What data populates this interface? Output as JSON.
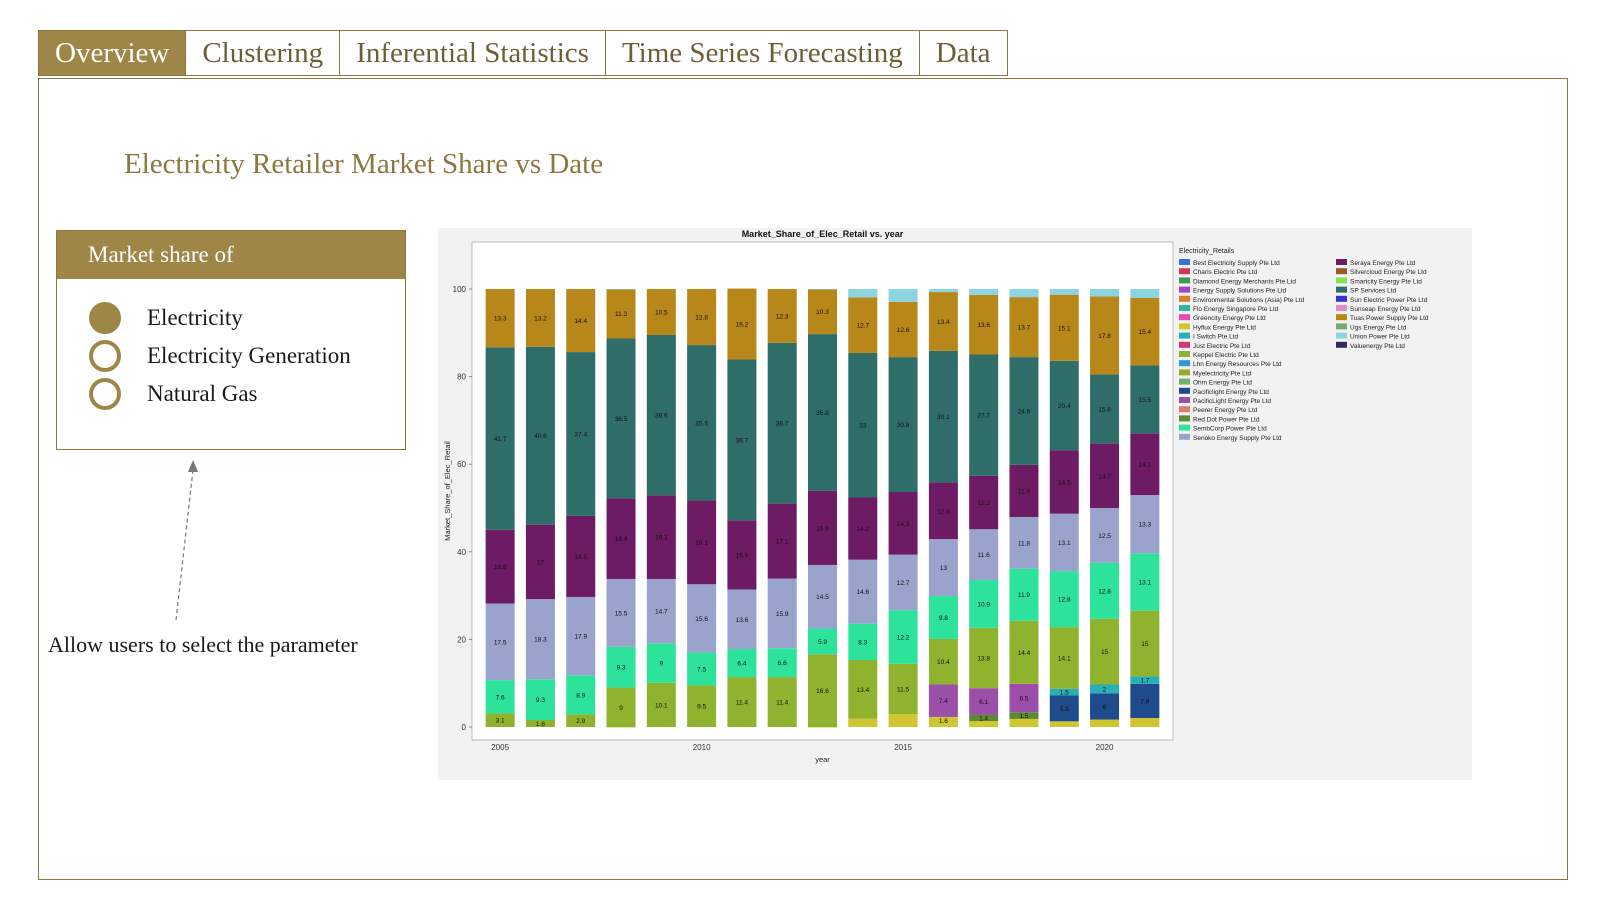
{
  "tabs": [
    {
      "label": "Overview",
      "active": true
    },
    {
      "label": "Clustering",
      "active": false
    },
    {
      "label": "Inferential Statistics",
      "active": false
    },
    {
      "label": "Time Series Forecasting",
      "active": false
    },
    {
      "label": "Data",
      "active": false
    }
  ],
  "page_title": "Electricity Retailer Market Share vs Date",
  "selector": {
    "heading": "Market share of",
    "options": [
      {
        "label": "Electricity",
        "selected": true
      },
      {
        "label": "Electricity Generation",
        "selected": false
      },
      {
        "label": "Natural Gas",
        "selected": false
      }
    ]
  },
  "annotation": "Allow users to select the parameter",
  "colors": {
    "accent": "#9e8646",
    "border": "#8c7740"
  },
  "chart_data": {
    "type": "bar",
    "stacked": true,
    "title": "Market_Share_of_Elec_Retail vs. year",
    "xlabel": "year",
    "ylabel": "Market_Share_of_Elec_Retail",
    "ylim": [
      0,
      100
    ],
    "y_ticks": [
      0,
      20,
      40,
      60,
      80,
      100
    ],
    "x_ticks": [
      2005,
      2010,
      2015,
      2020
    ],
    "legend_title": "Electricity_Retails",
    "legend_position": "right",
    "categories": [
      2005,
      2006,
      2007,
      2008,
      2009,
      2010,
      2011,
      2012,
      2013,
      2014,
      2015,
      2016,
      2017,
      2018,
      2019,
      2020,
      2021
    ],
    "legend": [
      {
        "name": "Best Electricity Supply Pte Ltd",
        "color": "#3b6fd8"
      },
      {
        "name": "Charis Electric Pte Ltd",
        "color": "#d8345a"
      },
      {
        "name": "Diamond Energy Merchants Pte Ltd",
        "color": "#3a9e4e"
      },
      {
        "name": "Energy Supply Solutions Pte Ltd",
        "color": "#a742c8"
      },
      {
        "name": "Environmental Solutions (Asia) Pte Ltd",
        "color": "#e07d2a"
      },
      {
        "name": "Flo Energy Singapore Pte Ltd",
        "color": "#2ab8a2"
      },
      {
        "name": "Greencity Energy Pte Ltd",
        "color": "#e84bb6"
      },
      {
        "name": "Hyflux Energy Pte Ltd",
        "color": "#cfc632"
      },
      {
        "name": "I Switch Pte Ltd",
        "color": "#27b0b8"
      },
      {
        "name": "Just Electric Pte Ltd",
        "color": "#d6367a"
      },
      {
        "name": "Keppel Electric Pte Ltd",
        "color": "#8fb32e"
      },
      {
        "name": "Lhn Energy Resources Pte Ltd",
        "color": "#2b9bd0"
      },
      {
        "name": "Myelectricity Pte Ltd",
        "color": "#97a832"
      },
      {
        "name": "Ohm Energy Pte Ltd",
        "color": "#6fb26b"
      },
      {
        "name": "Pacificlight Energy Pte Ltd",
        "color": "#1f4a8c"
      },
      {
        "name": "PacificLight Energy Pte Ltd",
        "color": "#9b4fa8"
      },
      {
        "name": "Peerer Energy Pte Ltd",
        "color": "#e07a6a"
      },
      {
        "name": "Red Dot Power Pte Ltd",
        "color": "#5d8a30"
      },
      {
        "name": "SembCorp Power Pte Ltd",
        "color": "#2de39c"
      },
      {
        "name": "Senoko Energy Supply Pte Ltd",
        "color": "#9aa3cc"
      },
      {
        "name": "Seraya Energy Pte Ltd",
        "color": "#6d1b64"
      },
      {
        "name": "Silvercloud Energy Pte Ltd",
        "color": "#9a5a2a"
      },
      {
        "name": "Smartcity Energy Pte Ltd",
        "color": "#86e05a"
      },
      {
        "name": "SP Services Ltd",
        "color": "#2f6e68"
      },
      {
        "name": "Sun Electric Power Pte Ltd",
        "color": "#3434d2"
      },
      {
        "name": "Sunseap Energy Pte Ltd",
        "color": "#e48ac8"
      },
      {
        "name": "Tuas Power Supply Pte Ltd",
        "color": "#b8871a"
      },
      {
        "name": "Ugs Energy Pte Ltd",
        "color": "#77a870"
      },
      {
        "name": "Union Power Pte Ltd",
        "color": "#8cd5e0"
      },
      {
        "name": "Valuenergy Pte Ltd",
        "color": "#352a60"
      }
    ],
    "series": [
      {
        "name": "Keppel Electric Pte Ltd",
        "color": "#8fb32e",
        "values": [
          3.1,
          1.6,
          2.9,
          9,
          10.1,
          9.5,
          11.4,
          11.4,
          16.6,
          13.4,
          11.5,
          10.4,
          13.8,
          14.4,
          14.1,
          15,
          15
        ]
      },
      {
        "name": "SembCorp Power Pte Ltd",
        "color": "#2de39c",
        "values": [
          7.6,
          9.3,
          8.9,
          9.3,
          9,
          7.5,
          6.4,
          6.6,
          5.9,
          8.3,
          12.2,
          9.8,
          10.9,
          11.9,
          12.8,
          12.8,
          13.1
        ]
      },
      {
        "name": "Senoko Energy Supply Pte Ltd",
        "color": "#9aa3cc",
        "values": [
          17.5,
          18.3,
          17.9,
          15.5,
          14.7,
          15.6,
          13.6,
          15.9,
          14.5,
          14.6,
          12.7,
          13,
          11.6,
          11.8,
          13.1,
          12.5,
          13.3
        ]
      },
      {
        "name": "Seraya Energy Pte Ltd",
        "color": "#6d1b64",
        "values": [
          16.8,
          17,
          18.5,
          18.4,
          19.1,
          19.1,
          15.8,
          17.1,
          16.9,
          14.2,
          14.3,
          12.9,
          12.2,
          11.9,
          14.5,
          14.7,
          14.1
        ]
      },
      {
        "name": "SP Services Ltd",
        "color": "#2f6e68",
        "values": [
          41.7,
          40.6,
          37.4,
          36.5,
          36.6,
          35.5,
          36.7,
          36.7,
          35.8,
          33,
          30.8,
          30.1,
          27.7,
          24.6,
          20.4,
          15.8,
          15.5
        ]
      },
      {
        "name": "Tuas Power Supply Pte Ltd",
        "color": "#b8871a",
        "values": [
          13.3,
          13.2,
          14.4,
          11.3,
          10.5,
          12.8,
          16.2,
          12.3,
          10.3,
          12.7,
          12.6,
          13.4,
          13.6,
          13.7,
          15.1,
          17.8,
          15.4
        ]
      }
    ],
    "data_labels_extra": [
      {
        "category": 2016,
        "series": "Hyflux Energy Pte Ltd",
        "value": 1.6
      },
      {
        "category": 2016,
        "series": "PacificLight Energy Pte Ltd",
        "value": 7.4
      },
      {
        "category": 2017,
        "series": "Red Dot Power Pte Ltd",
        "value": 1.4
      },
      {
        "category": 2017,
        "series": "PacificLight Energy Pte Ltd",
        "value": 6.1
      },
      {
        "category": 2018,
        "series": "Red Dot Power Pte Ltd",
        "value": 1.5
      },
      {
        "category": 2018,
        "series": "PacificLight Energy Pte Ltd",
        "value": 6.5
      },
      {
        "category": 2019,
        "series": "Pacificlight Energy Pte Ltd",
        "value": 5.9
      },
      {
        "category": 2019,
        "series": "I Switch Pte Ltd",
        "value": 1.5
      },
      {
        "category": 2020,
        "series": "Pacificlight Energy Pte Ltd",
        "value": 6
      },
      {
        "category": 2020,
        "series": "I Switch Pte Ltd",
        "value": 2
      },
      {
        "category": 2021,
        "series": "Pacificlight Energy Pte Ltd",
        "value": 7.8
      },
      {
        "category": 2021,
        "series": "I Switch Pte Ltd",
        "value": 1.7
      }
    ]
  }
}
